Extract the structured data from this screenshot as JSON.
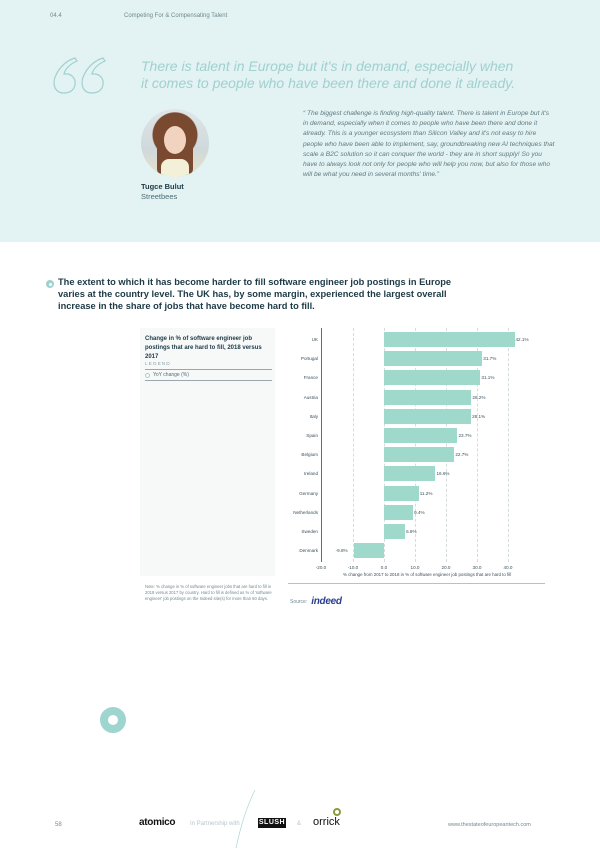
{
  "header": {
    "section_number": "04.4",
    "section_title": "Competing For & Compensating Talent"
  },
  "pull_quote": "There is talent in Europe but it's in demand, especially when it comes to people who have been there and done it already.",
  "icons": {
    "quote": "quote-mark-icon",
    "bullet": "bullet-icon",
    "ring": "ring-decoration-icon"
  },
  "person": {
    "name": "Tugce Bulut",
    "organization": "Streetbees"
  },
  "quote_body": "“ The biggest challenge is finding high-quality talent. There is talent in Europe but it's in demand, especially when it comes to people who have been there and done it already. This is a younger ecosystem than Silicon Valley and it's not easy to hire people who have been able to implement, say, groundbreaking new AI techniques that scale a B2C solution so it can conquer the world - they are in short supply! So you have to always look not only for people who will help you now, but also for those who will be what you need in several months' time.”",
  "lead_text": "The extent to which it has become harder to fill software engineer job postings in Europe varies at the country level. The UK has, by some margin, experienced the largest overall increase in the share of jobs that have become hard to fill.",
  "chart_panel": {
    "title": "Change in % of software engineer job postings that are hard to fill, 2018 versus 2017",
    "legend_header": "LEGEND",
    "legend_item": "YoY change (%)",
    "note": "Note: % change in % of software engineer jobs that are hard to fill in 2018 versus 2017 by country. Hard to fill is defined as % of 'software engineer' job postings on the Indeed site(s) for more than 60 days.",
    "source_label": "Source:",
    "source_logo": "indeed"
  },
  "chart_data": {
    "type": "bar",
    "orientation": "horizontal",
    "title": "Change in % of software engineer job postings that are hard to fill, 2018 versus 2017",
    "categories": [
      "UK",
      "Portugal",
      "France",
      "Austria",
      "Italy",
      "Spain",
      "Belgium",
      "Ireland",
      "Germany",
      "Netherlands",
      "Sweden",
      "Denmark"
    ],
    "values": [
      42.1,
      31.7,
      31.1,
      28.2,
      28.1,
      23.7,
      22.7,
      16.6,
      11.2,
      9.4,
      6.8,
      -9.8
    ],
    "value_labels": [
      "42.1%",
      "31.7%",
      "31.1%",
      "28.2%",
      "28.1%",
      "23.7%",
      "22.7%",
      "16.6%",
      "11.2%",
      "9.4%",
      "6.8%",
      "-9.8%"
    ],
    "series": [
      {
        "name": "YoY change (%)",
        "values": [
          42.1,
          31.7,
          31.1,
          28.2,
          28.1,
          23.7,
          22.7,
          16.6,
          11.2,
          9.4,
          6.8,
          -9.8
        ]
      }
    ],
    "xlabel": "% change from 2017 to 2018 in % of software engineer job postings that are hard to fill",
    "ylabel": "",
    "xlim": [
      -20,
      40
    ],
    "x_ticks": [
      "-20.0",
      "-10.0",
      "0.0",
      "10.0",
      "20.0",
      "30.0",
      "40.0"
    ],
    "grid": true,
    "legend_position": "left panel",
    "bar_color": "#9fd9cc"
  },
  "footer": {
    "page_number": "58",
    "logo_atomico": "atomico",
    "partnership_text": "In Partnership with",
    "logo_slush": "SLUSH",
    "ampersand": "&",
    "logo_orrick": "orrick",
    "url": "www.thestateofeuropeantech.com"
  },
  "colors": {
    "accent": "#9fd1cf",
    "top_background": "#e3f2f2",
    "text_dark": "#1d3a45",
    "bar": "#9fd9cc"
  }
}
